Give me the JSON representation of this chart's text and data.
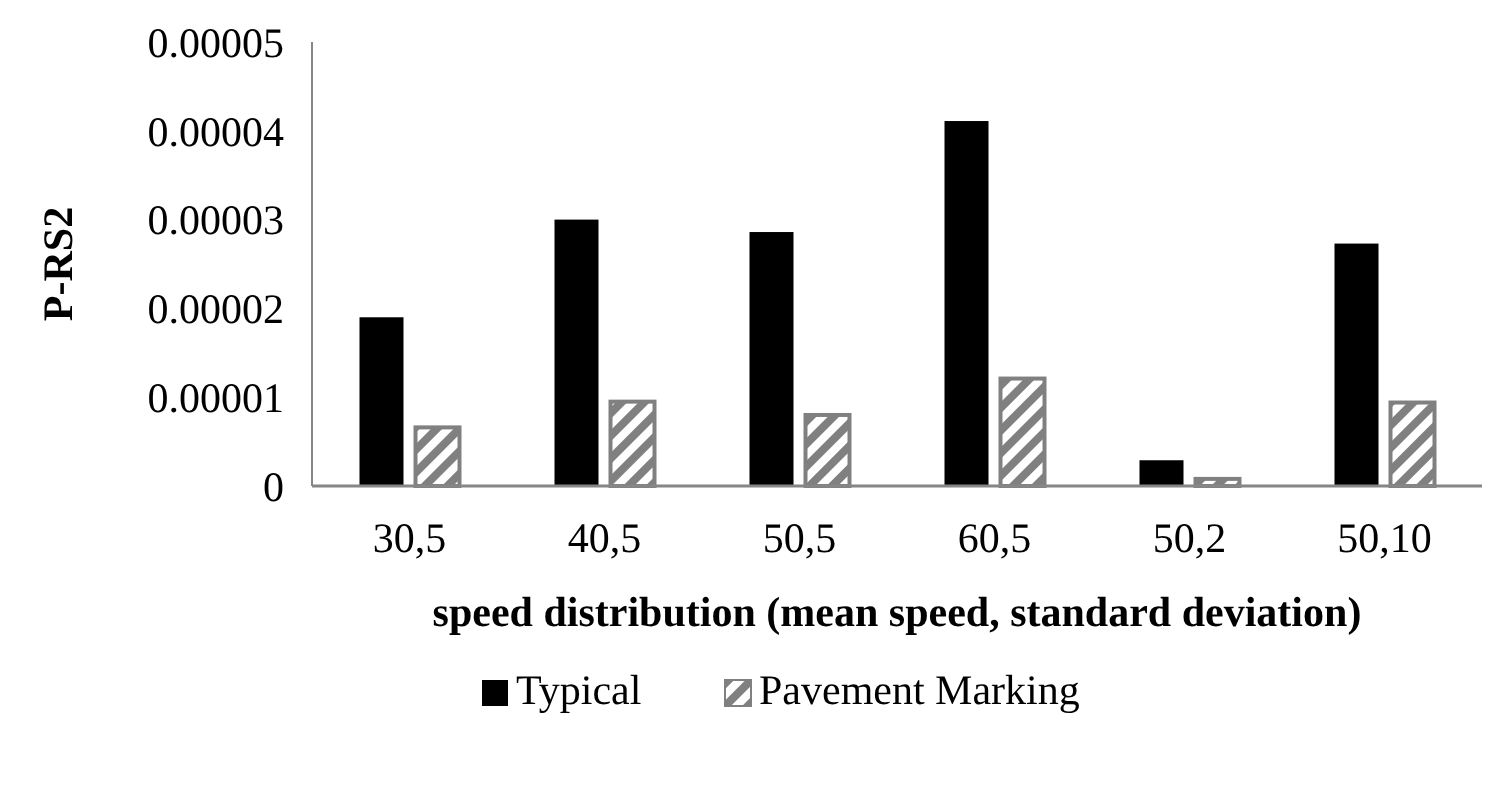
{
  "chart_data": {
    "type": "bar",
    "xlabel": "speed distribution (mean speed, standard deviation)",
    "ylabel": "P-RS2",
    "categories": [
      "30,5",
      "40,5",
      "50,5",
      "60,5",
      "50,2",
      "50,10"
    ],
    "series": [
      {
        "name": "Typical",
        "color": "#000000",
        "values": [
          1.9e-05,
          3e-05,
          2.86e-05,
          4.11e-05,
          2.9e-06,
          2.73e-05
        ]
      },
      {
        "name": "Pavement Marking",
        "color": "#808080",
        "values": [
          6.6e-06,
          9.5e-06,
          8e-06,
          1.21e-05,
          8e-07,
          9.4e-06
        ]
      }
    ],
    "ylim": [
      0,
      5e-05
    ],
    "yticks": [
      0,
      {
        "value": 1e-05,
        "label": "0.00001"
      },
      {
        "value": 2e-05,
        "label": "0.00002"
      },
      {
        "value": 3e-05,
        "label": "0.00003"
      },
      {
        "value": 4e-05,
        "label": "0.00004"
      },
      {
        "value": 5e-05,
        "label": "0.00005"
      }
    ],
    "grid": false,
    "legend": "bottom"
  }
}
